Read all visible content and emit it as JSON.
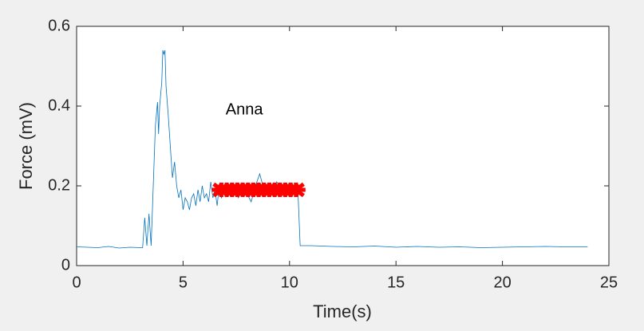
{
  "chart_data": {
    "type": "line",
    "xlabel": "Time(s)",
    "ylabel": "Force (mV)",
    "xlim": [
      0,
      25
    ],
    "ylim": [
      0,
      0.6
    ],
    "xticks": [
      0,
      5,
      10,
      15,
      20,
      25
    ],
    "yticks": [
      0,
      0.2,
      0.4,
      0.6
    ],
    "annotation": {
      "text": "Anna",
      "x": 7.0,
      "y": 0.39
    },
    "series": [
      {
        "color": "#0072bd",
        "mode": "line",
        "x": [
          0,
          0.5,
          1,
          1.5,
          2,
          2.5,
          3,
          3.1,
          3.2,
          3.3,
          3.4,
          3.5,
          3.6,
          3.7,
          3.8,
          3.85,
          3.9,
          4.0,
          4.05,
          4.1,
          4.15,
          4.2,
          4.3,
          4.4,
          4.5,
          4.6,
          4.7,
          4.8,
          4.9,
          5.0,
          5.1,
          5.2,
          5.3,
          5.4,
          5.5,
          5.6,
          5.7,
          5.8,
          5.9,
          6.0,
          6.1,
          6.2,
          6.3,
          6.4,
          6.5,
          6.6,
          6.7,
          6.8,
          7.0,
          7.2,
          7.4,
          7.6,
          7.8,
          8.0,
          8.2,
          8.4,
          8.6,
          8.8,
          9.0,
          9.2,
          9.4,
          9.6,
          9.8,
          10.0,
          10.2,
          10.4,
          10.5,
          11,
          12,
          13,
          14,
          15,
          16,
          17,
          18,
          19,
          20,
          21,
          22,
          23,
          24
        ],
        "values": [
          0.047,
          0.046,
          0.045,
          0.048,
          0.044,
          0.046,
          0.045,
          0.045,
          0.12,
          0.05,
          0.13,
          0.05,
          0.2,
          0.35,
          0.41,
          0.33,
          0.4,
          0.46,
          0.54,
          0.53,
          0.54,
          0.45,
          0.38,
          0.3,
          0.22,
          0.26,
          0.2,
          0.17,
          0.19,
          0.14,
          0.17,
          0.16,
          0.14,
          0.17,
          0.18,
          0.15,
          0.19,
          0.16,
          0.2,
          0.17,
          0.18,
          0.16,
          0.21,
          0.17,
          0.19,
          0.15,
          0.2,
          0.17,
          0.19,
          0.18,
          0.2,
          0.17,
          0.19,
          0.18,
          0.16,
          0.2,
          0.23,
          0.19,
          0.2,
          0.18,
          0.21,
          0.19,
          0.2,
          0.2,
          0.19,
          0.18,
          0.05,
          0.05,
          0.048,
          0.047,
          0.049,
          0.046,
          0.048,
          0.046,
          0.047,
          0.045,
          0.046,
          0.047,
          0.048,
          0.047,
          0.047
        ]
      },
      {
        "color": "#ff0000",
        "mode": "markers",
        "x": [
          6.8,
          7.05,
          7.3,
          7.55,
          7.8,
          8.05,
          8.3,
          8.55,
          8.8,
          9.05,
          9.3,
          9.55,
          9.8,
          10.05,
          10.3
        ],
        "values": [
          0.19,
          0.19,
          0.19,
          0.19,
          0.19,
          0.19,
          0.19,
          0.19,
          0.19,
          0.19,
          0.19,
          0.19,
          0.19,
          0.19,
          0.19
        ]
      }
    ]
  }
}
